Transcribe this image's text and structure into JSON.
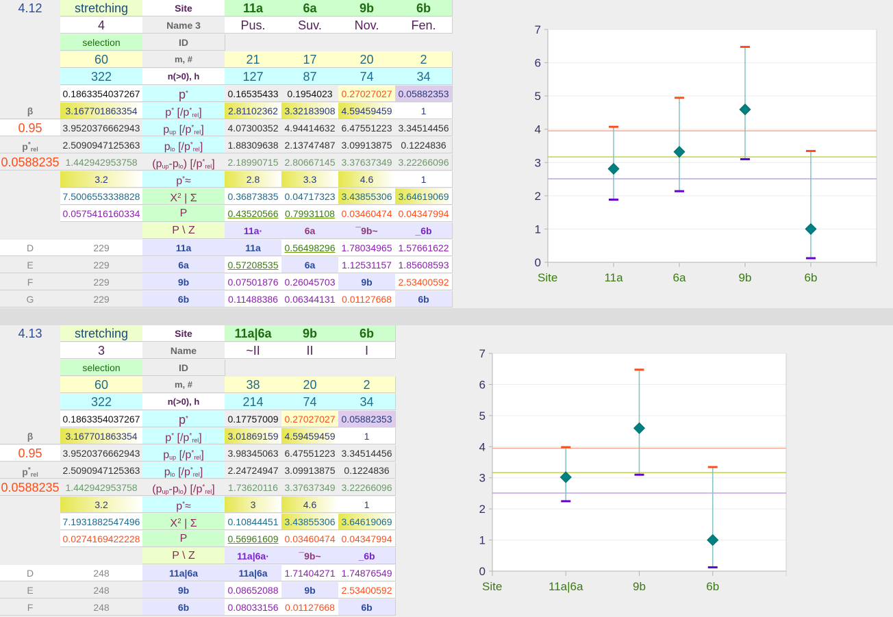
{
  "tables": [
    {
      "id": "4.12",
      "section_label": "4.12",
      "stretching_label": "stretching",
      "stretching_value": "4",
      "selection_label": "selection",
      "selection_value": "60",
      "n_value": "322",
      "p_star_value": "0.1863354037267",
      "beta_label": "β",
      "beta_value": "3.167701863354",
      "confidence": "0.95",
      "p_up_value": "3.9520376662943",
      "p_rel_label": "p*rel",
      "p_lo_value": "2.5090947125363",
      "p_rel_value": "0.0588235",
      "diff_value": "1.442942953758",
      "p_approx_value": "3.2",
      "chi2_value": "7.5006553338828",
      "P_value": "0.0575416160334",
      "row_labels": {
        "site": "Site",
        "name": "Name 3",
        "id": "ID",
        "m": "m, #",
        "n": "n(>0), h",
        "p_star": "p*",
        "p_star_rel": "p* [/p*rel]",
        "p_up": "pup [/p*rel]",
        "p_lo": "plo [/p*rel]",
        "diff": "(pup-plo) [/p*rel]",
        "p_approx": "p*≈",
        "chi2": "X² | Σ",
        "P": "P",
        "pz": "P \\ Z"
      },
      "columns": [
        {
          "site": "11a",
          "name": "Pus.",
          "m": "21",
          "n": "127",
          "p_star": "0.16535433",
          "p_star_rel": "2.81102362",
          "p_up": "4.07300352",
          "p_lo": "1.88309638",
          "diff": "2.18990715",
          "p_approx": "2.8",
          "chi2": "0.36873835",
          "P": "0.43520566",
          "pz_head": "11a·"
        },
        {
          "site": "6a",
          "name": "Suv.",
          "m": "17",
          "n": "87",
          "p_star": "0.1954023",
          "p_star_rel": "3.32183908",
          "p_up": "4.94414632",
          "p_lo": "2.13747487",
          "diff": "2.80667145",
          "p_approx": "3.3",
          "chi2": "0.04717323",
          "P": "0.79931108",
          "pz_head": "6a"
        },
        {
          "site": "9b",
          "name": "Nov.",
          "m": "20",
          "n": "74",
          "p_star": "0.27027027",
          "p_star_rel": "4.59459459",
          "p_up": "6.47551223",
          "p_lo": "3.09913875",
          "diff": "3.37637349",
          "p_approx": "4.6",
          "chi2": "3.43855306",
          "P": "0.03460474",
          "pz_head": "¯9b~"
        },
        {
          "site": "6b",
          "name": "Fen.",
          "m": "2",
          "n": "34",
          "p_star": "0.05882353",
          "p_star_rel": "1",
          "p_up": "3.34514456",
          "p_lo": "0.1224836",
          "diff": "3.22266096",
          "p_approx": "1",
          "chi2": "3.64619069",
          "P": "0.04347994",
          "pz_head": "_6b"
        }
      ],
      "matrix": [
        {
          "label": "D",
          "count": "229",
          "site": "11a",
          "cells": [
            "11a",
            "0.56498296",
            "1.78034965",
            "1.57661622"
          ]
        },
        {
          "label": "E",
          "count": "229",
          "site": "6a",
          "cells": [
            "0.57208535",
            "6a",
            "1.12531157",
            "1.85608593"
          ]
        },
        {
          "label": "F",
          "count": "229",
          "site": "9b",
          "cells": [
            "0.07501876",
            "0.26045703",
            "9b",
            "2.53400592"
          ]
        },
        {
          "label": "G",
          "count": "229",
          "site": "6b",
          "cells": [
            "0.11488386",
            "0.06344131",
            "0.01127668",
            "6b"
          ]
        }
      ]
    },
    {
      "id": "4.13",
      "section_label": "4.13",
      "stretching_label": "stretching",
      "stretching_value": "3",
      "selection_label": "selection",
      "selection_value": "60",
      "n_value": "322",
      "p_star_value": "0.1863354037267",
      "beta_label": "β",
      "beta_value": "3.167701863354",
      "confidence": "0.95",
      "p_up_value": "3.9520376662943",
      "p_rel_label": "p*rel",
      "p_lo_value": "2.5090947125363",
      "p_rel_value": "0.0588235",
      "diff_value": "1.442942953758",
      "p_approx_value": "3.2",
      "chi2_value": "7.1931882547496",
      "P_value": "0.0274169422228",
      "row_labels": {
        "site": "Site",
        "name": "Name",
        "id": "ID",
        "m": "m, #",
        "n": "n(>0), h",
        "p_star": "p*",
        "p_star_rel": "p* [/p*rel]",
        "p_up": "pup [/p*rel]",
        "p_lo": "plo [/p*rel]",
        "diff": "(pup-plo) [/p*rel]",
        "p_approx": "p*≈",
        "chi2": "X² | Σ",
        "P": "P",
        "pz": "P \\ Z"
      },
      "columns": [
        {
          "site": "11a|6a",
          "name": "~II",
          "m": "38",
          "n": "214",
          "p_star": "0.17757009",
          "p_star_rel": "3.01869159",
          "p_up": "3.98345063",
          "p_lo": "2.24724947",
          "diff": "1.73620116",
          "p_approx": "3",
          "chi2": "0.10844451",
          "P": "0.56961609",
          "pz_head": "11a|6a·"
        },
        {
          "site": "9b",
          "name": "II",
          "m": "20",
          "n": "74",
          "p_star": "0.27027027",
          "p_star_rel": "4.59459459",
          "p_up": "6.47551223",
          "p_lo": "3.09913875",
          "diff": "3.37637349",
          "p_approx": "4.6",
          "chi2": "3.43855306",
          "P": "0.03460474",
          "pz_head": "¯9b~"
        },
        {
          "site": "6b",
          "name": "I",
          "m": "2",
          "n": "34",
          "p_star": "0.05882353",
          "p_star_rel": "1",
          "p_up": "3.34514456",
          "p_lo": "0.1224836",
          "diff": "3.22266096",
          "p_approx": "1",
          "chi2": "3.64619069",
          "P": "0.04347994",
          "pz_head": "_6b"
        }
      ],
      "matrix": [
        {
          "label": "D",
          "count": "248",
          "site": "11a|6a",
          "cells": [
            "11a|6a",
            "1.71404271",
            "1.74876549"
          ]
        },
        {
          "label": "E",
          "count": "248",
          "site": "9b",
          "cells": [
            "0.08652088",
            "9b",
            "2.53400592"
          ]
        },
        {
          "label": "F",
          "count": "248",
          "site": "6b",
          "cells": [
            "0.08033156",
            "0.01127668",
            "6b"
          ]
        }
      ]
    }
  ],
  "chart_data": [
    {
      "type": "scatter",
      "title": "",
      "xlabel": "",
      "ylabel": "",
      "categories": [
        "Site",
        "11a",
        "6a",
        "9b",
        "6b"
      ],
      "ylim": [
        0,
        7
      ],
      "yticks": [
        "0",
        "1",
        "2",
        "3",
        "4",
        "5",
        "6",
        "7"
      ],
      "grid": true,
      "series": [
        {
          "name": "p* [/p*rel]",
          "marker": "diamond",
          "values": [
            null,
            2.81102362,
            3.32183908,
            4.59459459,
            1
          ]
        },
        {
          "name": "pup",
          "marker": "dash",
          "values": [
            null,
            4.07300352,
            4.94414632,
            6.47551223,
            3.34514456
          ]
        },
        {
          "name": "plo",
          "marker": "dash",
          "values": [
            null,
            1.88309638,
            2.13747487,
            3.09913875,
            0.1224836
          ]
        }
      ],
      "reference_lines": [
        {
          "name": "pup overall",
          "value": 3.9520376662943,
          "color": "#f4a08c"
        },
        {
          "name": "beta",
          "value": 3.167701863354,
          "color": "#b3cc1a"
        },
        {
          "name": "plo overall",
          "value": 2.5090947125363,
          "color": "#b38ce6"
        }
      ],
      "colors": {
        "point": "#008080",
        "errorbar": "#88c4c4",
        "upper": "#ff4d1a",
        "lower": "#6600cc",
        "tick_label_x": "#3a7a10",
        "tick_label_y": "#3d2a66"
      }
    },
    {
      "type": "scatter",
      "title": "",
      "xlabel": "",
      "ylabel": "",
      "categories": [
        "Site",
        "11a|6a",
        "9b",
        "6b"
      ],
      "ylim": [
        0,
        7
      ],
      "yticks": [
        "0",
        "1",
        "2",
        "3",
        "4",
        "5",
        "6",
        "7"
      ],
      "grid": true,
      "series": [
        {
          "name": "p* [/p*rel]",
          "marker": "diamond",
          "values": [
            null,
            3.01869159,
            4.59459459,
            1
          ]
        },
        {
          "name": "pup",
          "marker": "dash",
          "values": [
            null,
            3.98345063,
            6.47551223,
            3.34514456
          ]
        },
        {
          "name": "plo",
          "marker": "dash",
          "values": [
            null,
            2.24724947,
            3.09913875,
            0.1224836
          ]
        }
      ],
      "reference_lines": [
        {
          "name": "pup overall",
          "value": 3.9520376662943,
          "color": "#f4a08c"
        },
        {
          "name": "beta",
          "value": 3.167701863354,
          "color": "#b3cc1a"
        },
        {
          "name": "plo overall",
          "value": 2.5090947125363,
          "color": "#b38ce6"
        }
      ],
      "colors": {
        "point": "#008080",
        "errorbar": "#88c4c4",
        "upper": "#ff4d1a",
        "lower": "#6600cc",
        "tick_label_x": "#3a7a10",
        "tick_label_y": "#3d2a66"
      }
    }
  ]
}
